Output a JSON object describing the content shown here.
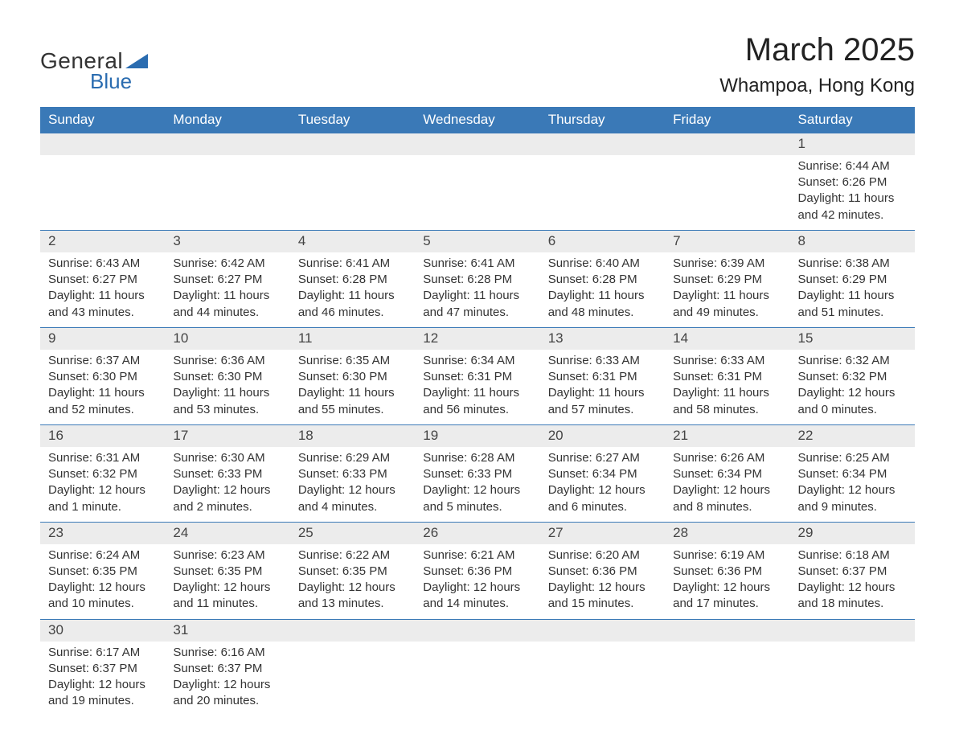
{
  "logo": {
    "general": "General",
    "blue": "Blue",
    "flag_color": "#2a6cb0"
  },
  "title": "March 2025",
  "location": "Whampoa, Hong Kong",
  "colors": {
    "header_bg": "#3a79b7",
    "header_text": "#ffffff",
    "daynum_bg": "#ececec",
    "row_border": "#3a79b7",
    "body_text": "#333333",
    "page_bg": "#ffffff"
  },
  "fonts": {
    "title_size": 40,
    "location_size": 24,
    "header_size": 17,
    "daynum_size": 17,
    "cell_size": 15
  },
  "day_headers": [
    "Sunday",
    "Monday",
    "Tuesday",
    "Wednesday",
    "Thursday",
    "Friday",
    "Saturday"
  ],
  "weeks": [
    [
      null,
      null,
      null,
      null,
      null,
      null,
      {
        "n": "1",
        "sunrise": "Sunrise: 6:44 AM",
        "sunset": "Sunset: 6:26 PM",
        "daylight": "Daylight: 11 hours and 42 minutes."
      }
    ],
    [
      {
        "n": "2",
        "sunrise": "Sunrise: 6:43 AM",
        "sunset": "Sunset: 6:27 PM",
        "daylight": "Daylight: 11 hours and 43 minutes."
      },
      {
        "n": "3",
        "sunrise": "Sunrise: 6:42 AM",
        "sunset": "Sunset: 6:27 PM",
        "daylight": "Daylight: 11 hours and 44 minutes."
      },
      {
        "n": "4",
        "sunrise": "Sunrise: 6:41 AM",
        "sunset": "Sunset: 6:28 PM",
        "daylight": "Daylight: 11 hours and 46 minutes."
      },
      {
        "n": "5",
        "sunrise": "Sunrise: 6:41 AM",
        "sunset": "Sunset: 6:28 PM",
        "daylight": "Daylight: 11 hours and 47 minutes."
      },
      {
        "n": "6",
        "sunrise": "Sunrise: 6:40 AM",
        "sunset": "Sunset: 6:28 PM",
        "daylight": "Daylight: 11 hours and 48 minutes."
      },
      {
        "n": "7",
        "sunrise": "Sunrise: 6:39 AM",
        "sunset": "Sunset: 6:29 PM",
        "daylight": "Daylight: 11 hours and 49 minutes."
      },
      {
        "n": "8",
        "sunrise": "Sunrise: 6:38 AM",
        "sunset": "Sunset: 6:29 PM",
        "daylight": "Daylight: 11 hours and 51 minutes."
      }
    ],
    [
      {
        "n": "9",
        "sunrise": "Sunrise: 6:37 AM",
        "sunset": "Sunset: 6:30 PM",
        "daylight": "Daylight: 11 hours and 52 minutes."
      },
      {
        "n": "10",
        "sunrise": "Sunrise: 6:36 AM",
        "sunset": "Sunset: 6:30 PM",
        "daylight": "Daylight: 11 hours and 53 minutes."
      },
      {
        "n": "11",
        "sunrise": "Sunrise: 6:35 AM",
        "sunset": "Sunset: 6:30 PM",
        "daylight": "Daylight: 11 hours and 55 minutes."
      },
      {
        "n": "12",
        "sunrise": "Sunrise: 6:34 AM",
        "sunset": "Sunset: 6:31 PM",
        "daylight": "Daylight: 11 hours and 56 minutes."
      },
      {
        "n": "13",
        "sunrise": "Sunrise: 6:33 AM",
        "sunset": "Sunset: 6:31 PM",
        "daylight": "Daylight: 11 hours and 57 minutes."
      },
      {
        "n": "14",
        "sunrise": "Sunrise: 6:33 AM",
        "sunset": "Sunset: 6:31 PM",
        "daylight": "Daylight: 11 hours and 58 minutes."
      },
      {
        "n": "15",
        "sunrise": "Sunrise: 6:32 AM",
        "sunset": "Sunset: 6:32 PM",
        "daylight": "Daylight: 12 hours and 0 minutes."
      }
    ],
    [
      {
        "n": "16",
        "sunrise": "Sunrise: 6:31 AM",
        "sunset": "Sunset: 6:32 PM",
        "daylight": "Daylight: 12 hours and 1 minute."
      },
      {
        "n": "17",
        "sunrise": "Sunrise: 6:30 AM",
        "sunset": "Sunset: 6:33 PM",
        "daylight": "Daylight: 12 hours and 2 minutes."
      },
      {
        "n": "18",
        "sunrise": "Sunrise: 6:29 AM",
        "sunset": "Sunset: 6:33 PM",
        "daylight": "Daylight: 12 hours and 4 minutes."
      },
      {
        "n": "19",
        "sunrise": "Sunrise: 6:28 AM",
        "sunset": "Sunset: 6:33 PM",
        "daylight": "Daylight: 12 hours and 5 minutes."
      },
      {
        "n": "20",
        "sunrise": "Sunrise: 6:27 AM",
        "sunset": "Sunset: 6:34 PM",
        "daylight": "Daylight: 12 hours and 6 minutes."
      },
      {
        "n": "21",
        "sunrise": "Sunrise: 6:26 AM",
        "sunset": "Sunset: 6:34 PM",
        "daylight": "Daylight: 12 hours and 8 minutes."
      },
      {
        "n": "22",
        "sunrise": "Sunrise: 6:25 AM",
        "sunset": "Sunset: 6:34 PM",
        "daylight": "Daylight: 12 hours and 9 minutes."
      }
    ],
    [
      {
        "n": "23",
        "sunrise": "Sunrise: 6:24 AM",
        "sunset": "Sunset: 6:35 PM",
        "daylight": "Daylight: 12 hours and 10 minutes."
      },
      {
        "n": "24",
        "sunrise": "Sunrise: 6:23 AM",
        "sunset": "Sunset: 6:35 PM",
        "daylight": "Daylight: 12 hours and 11 minutes."
      },
      {
        "n": "25",
        "sunrise": "Sunrise: 6:22 AM",
        "sunset": "Sunset: 6:35 PM",
        "daylight": "Daylight: 12 hours and 13 minutes."
      },
      {
        "n": "26",
        "sunrise": "Sunrise: 6:21 AM",
        "sunset": "Sunset: 6:36 PM",
        "daylight": "Daylight: 12 hours and 14 minutes."
      },
      {
        "n": "27",
        "sunrise": "Sunrise: 6:20 AM",
        "sunset": "Sunset: 6:36 PM",
        "daylight": "Daylight: 12 hours and 15 minutes."
      },
      {
        "n": "28",
        "sunrise": "Sunrise: 6:19 AM",
        "sunset": "Sunset: 6:36 PM",
        "daylight": "Daylight: 12 hours and 17 minutes."
      },
      {
        "n": "29",
        "sunrise": "Sunrise: 6:18 AM",
        "sunset": "Sunset: 6:37 PM",
        "daylight": "Daylight: 12 hours and 18 minutes."
      }
    ],
    [
      {
        "n": "30",
        "sunrise": "Sunrise: 6:17 AM",
        "sunset": "Sunset: 6:37 PM",
        "daylight": "Daylight: 12 hours and 19 minutes."
      },
      {
        "n": "31",
        "sunrise": "Sunrise: 6:16 AM",
        "sunset": "Sunset: 6:37 PM",
        "daylight": "Daylight: 12 hours and 20 minutes."
      },
      null,
      null,
      null,
      null,
      null
    ]
  ]
}
